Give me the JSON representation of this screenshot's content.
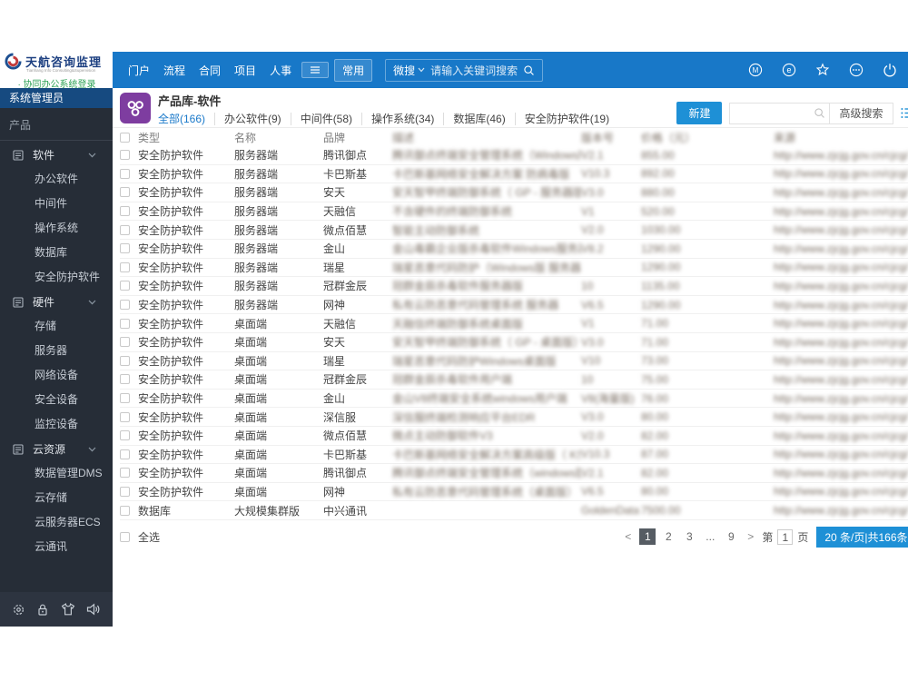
{
  "header": {
    "logo": {
      "title": "天航咨询监理",
      "subtitle": "Tianhang Info Consulting&Supervision",
      "login_link": "· 协同办公系统登录"
    },
    "nav": [
      "门户",
      "流程",
      "合同",
      "项目",
      "人事"
    ],
    "nav_more_label": "常用",
    "search": {
      "scope_label": "微搜",
      "placeholder": "请输入关键词搜索"
    },
    "right_icons": [
      "m-badge-icon",
      "service-icon",
      "star-icon",
      "more-icon",
      "power-icon"
    ]
  },
  "sidebar": {
    "role": "系统管理员",
    "section": "产品",
    "groups": [
      {
        "label": "软件",
        "items": [
          "办公软件",
          "中间件",
          "操作系统",
          "数据库",
          "安全防护软件"
        ]
      },
      {
        "label": "硬件",
        "items": [
          "存储",
          "服务器",
          "网络设备",
          "安全设备",
          "监控设备"
        ]
      },
      {
        "label": "云资源",
        "items": [
          "数据管理DMS",
          "云存储",
          "云服务器ECS",
          "云通讯"
        ]
      }
    ],
    "footer_icons": [
      "settings-icon",
      "lock-icon",
      "theme-icon",
      "sound-icon"
    ]
  },
  "main": {
    "title": "产品库-软件",
    "tabs": [
      {
        "label": "全部(166)",
        "active": true
      },
      {
        "label": "办公软件(9)",
        "active": false
      },
      {
        "label": "中间件(58)",
        "active": false
      },
      {
        "label": "操作系统(34)",
        "active": false
      },
      {
        "label": "数据库(46)",
        "active": false
      },
      {
        "label": "安全防护软件(19)",
        "active": false
      }
    ],
    "new_button": "新建",
    "advanced_search": "高级搜索",
    "table": {
      "columns": [
        {
          "key": "type",
          "label": "类型",
          "blurred": false
        },
        {
          "key": "name",
          "label": "名称",
          "blurred": false
        },
        {
          "key": "brand",
          "label": "品牌",
          "blurred": false
        },
        {
          "key": "desc",
          "label": "描述",
          "blurred": true
        },
        {
          "key": "version",
          "label": "版本号",
          "blurred": true
        },
        {
          "key": "price",
          "label": "价格（元）",
          "blurred": true
        },
        {
          "key": "source",
          "label": "来源",
          "blurred": true
        }
      ],
      "rows": [
        {
          "type": "安全防护软件",
          "name": "服务器端",
          "brand": "腾讯御点",
          "desc": "腾讯御点终端安全管理系统（Windows版）",
          "version": "V2.1",
          "price": "855.00",
          "source": "http://www.zjcjg.gov.cn/cjcg/"
        },
        {
          "type": "安全防护软件",
          "name": "服务器端",
          "brand": "卡巴斯基",
          "desc": "卡巴斯基网络安全解决方案 防病毒版",
          "version": "V10.3",
          "price": "892.00",
          "source": "http://www.zjcjg.gov.cn/cjcg/"
        },
        {
          "type": "安全防护软件",
          "name": "服务器端",
          "brand": "安天",
          "desc": "安天智甲终端防御系统（ GP - 服务器版）",
          "version": "V3.0",
          "price": "880.00",
          "source": "http://www.zjcjg.gov.cn/cjcg/"
        },
        {
          "type": "安全防护软件",
          "name": "服务器端",
          "brand": "天融信",
          "desc": "不含硬件的终端防御系统",
          "version": "V1",
          "price": "520.00",
          "source": "http://www.zjcjg.gov.cn/cjcg/"
        },
        {
          "type": "安全防护软件",
          "name": "服务器端",
          "brand": "微点佰慧",
          "desc": "智能主动防御系统",
          "version": "V2.0",
          "price": "1030.00",
          "source": "http://www.zjcjg.gov.cn/cjcg/"
        },
        {
          "type": "安全防护软件",
          "name": "服务器端",
          "brand": "金山",
          "desc": "金山毒霸企业版杀毒软件Windows服务器版",
          "version": "V8.2",
          "price": "1290.00",
          "source": "http://www.zjcjg.gov.cn/cjcg/"
        },
        {
          "type": "安全防护软件",
          "name": "服务器端",
          "brand": "瑞星",
          "desc": "瑞星恶意代码防护（Windows版 服务器）",
          "version": "",
          "price": "1290.00",
          "source": "http://www.zjcjg.gov.cn/cjcg/"
        },
        {
          "type": "安全防护软件",
          "name": "服务器端",
          "brand": "冠群金辰",
          "desc": "冠群金辰杀毒软件服务器版",
          "version": "10",
          "price": "1135.00",
          "source": "http://www.zjcjg.gov.cn/cjcg/"
        },
        {
          "type": "安全防护软件",
          "name": "服务器端",
          "brand": "网神",
          "desc": "私有云防恶意代码管理系统 服务器",
          "version": "V6.5",
          "price": "1290.00",
          "source": "http://www.zjcjg.gov.cn/cjcg/"
        },
        {
          "type": "安全防护软件",
          "name": "桌面端",
          "brand": "天融信",
          "desc": "天融信终端防御系统桌面版",
          "version": "V1",
          "price": "71.00",
          "source": "http://www.zjcjg.gov.cn/cjcg/"
        },
        {
          "type": "安全防护软件",
          "name": "桌面端",
          "brand": "安天",
          "desc": "安天智甲终端防御系统（ GP - 桌面版）",
          "version": "V3.0",
          "price": "71.00",
          "source": "http://www.zjcjg.gov.cn/cjcg/"
        },
        {
          "type": "安全防护软件",
          "name": "桌面端",
          "brand": "瑞星",
          "desc": "瑞星恶意代码防护Windows桌面版",
          "version": "V10",
          "price": "73.00",
          "source": "http://www.zjcjg.gov.cn/cjcg/"
        },
        {
          "type": "安全防护软件",
          "name": "桌面端",
          "brand": "冠群金辰",
          "desc": "冠群金辰杀毒软件用户端",
          "version": "10",
          "price": "75.00",
          "source": "http://www.zjcjg.gov.cn/cjcg/"
        },
        {
          "type": "安全防护软件",
          "name": "桌面端",
          "brand": "金山",
          "desc": "金山V8终端安全系统windows用户端",
          "version": "V8(海量版)",
          "price": "76.00",
          "source": "http://www.zjcjg.gov.cn/cjcg/"
        },
        {
          "type": "安全防护软件",
          "name": "桌面端",
          "brand": "深信服",
          "desc": "深信服终端检测响应平台EDR",
          "version": "V3.0",
          "price": "80.00",
          "source": "http://www.zjcjg.gov.cn/cjcg/"
        },
        {
          "type": "安全防护软件",
          "name": "桌面端",
          "brand": "微点佰慧",
          "desc": "微点主动防御软件V3",
          "version": "V2.0",
          "price": "82.00",
          "source": "http://www.zjcjg.gov.cn/cjcg/"
        },
        {
          "type": "安全防护软件",
          "name": "桌面端",
          "brand": "卡巴斯基",
          "desc": "卡巴斯基网络安全解决方案高级版（ KS）",
          "version": "V10.3",
          "price": "87.00",
          "source": "http://www.zjcjg.gov.cn/cjcg/"
        },
        {
          "type": "安全防护软件",
          "name": "桌面端",
          "brand": "腾讯御点",
          "desc": "腾讯御点终端安全管理系统（windows版）",
          "version": "V2.1",
          "price": "82.00",
          "source": "http://www.zjcjg.gov.cn/cjcg/"
        },
        {
          "type": "安全防护软件",
          "name": "桌面端",
          "brand": "网神",
          "desc": "私有云防恶意代码管理系统（桌面版）",
          "version": "V6.5",
          "price": "80.00",
          "source": "http://www.zjcjg.gov.cn/cjcg/"
        },
        {
          "type": "数据库",
          "name": "大规模集群版",
          "brand": "中兴通讯",
          "desc": "",
          "version": "GoldenData s...",
          "price": "7500.00",
          "source": "http://www.zjcjg.gov.cn/cjcg/"
        }
      ]
    },
    "select_all": "全选",
    "pagination": {
      "prev": "<",
      "pages": [
        "1",
        "2",
        "3",
        "...",
        "9"
      ],
      "active_page": "1",
      "next": ">",
      "jump_prefix": "第",
      "jump_value": "1",
      "jump_suffix": "页",
      "summary": "20 条/页|共166条"
    }
  },
  "colors": {
    "topbar_blue": "#1878c8",
    "sidebar_dark": "#262d37",
    "role_bar_blue": "#164a80",
    "accent_blue": "#1e90d6",
    "app_icon_purple": "#7e3da0",
    "active_page_gray": "#565c63"
  }
}
